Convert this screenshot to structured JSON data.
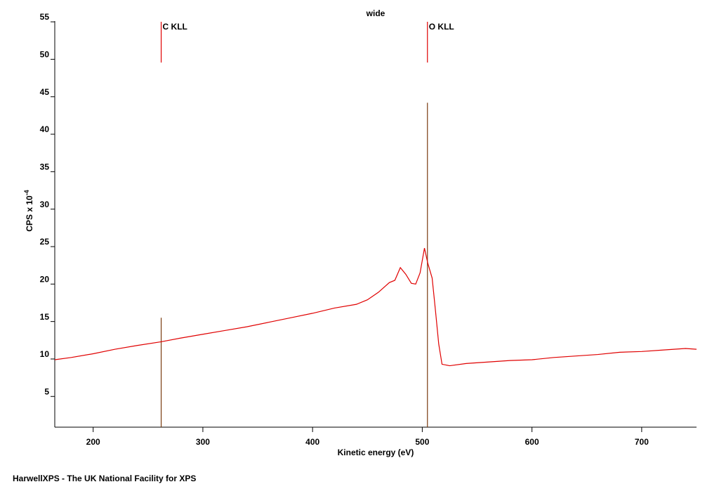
{
  "chart_data": {
    "type": "line",
    "title": "wide",
    "xlabel": "Kinetic energy (eV)",
    "ylabel": "CPS x 10",
    "ylabel_exponent": "-4",
    "footer": "HarwellXPS - The UK National Facility for XPS",
    "color": "#e00000",
    "x": [
      165,
      180,
      200,
      220,
      240,
      262,
      280,
      300,
      320,
      340,
      360,
      380,
      400,
      420,
      440,
      450,
      460,
      470,
      475,
      480,
      485,
      490,
      494,
      498,
      502,
      505,
      509,
      512,
      515,
      518,
      525,
      540,
      560,
      580,
      600,
      620,
      640,
      660,
      680,
      700,
      720,
      740,
      750
    ],
    "values": [
      9.9,
      10.2,
      10.7,
      11.3,
      11.8,
      12.3,
      12.8,
      13.3,
      13.8,
      14.3,
      14.9,
      15.5,
      16.1,
      16.8,
      17.3,
      17.9,
      18.9,
      20.2,
      20.5,
      22.2,
      21.3,
      20.1,
      20.0,
      21.5,
      24.8,
      22.8,
      20.8,
      16.5,
      12,
      9.3,
      9.1,
      9.4,
      9.6,
      9.8,
      9.9,
      10.2,
      10.4,
      10.6,
      10.9,
      11.0,
      11.2,
      11.4,
      11.3
    ],
    "peaks": [
      {
        "label": "C KLL",
        "x": 262,
        "height": 15.5
      },
      {
        "label": "O KLL",
        "x": 504.7,
        "height": 44.2
      }
    ],
    "xlim": [
      165,
      750
    ],
    "xticks": [
      200,
      300,
      400,
      500,
      600,
      700
    ],
    "ylim": [
      0.9,
      55.1
    ],
    "yticks": [
      5,
      10,
      15,
      20,
      25,
      30,
      35,
      40,
      45,
      50,
      55
    ]
  }
}
